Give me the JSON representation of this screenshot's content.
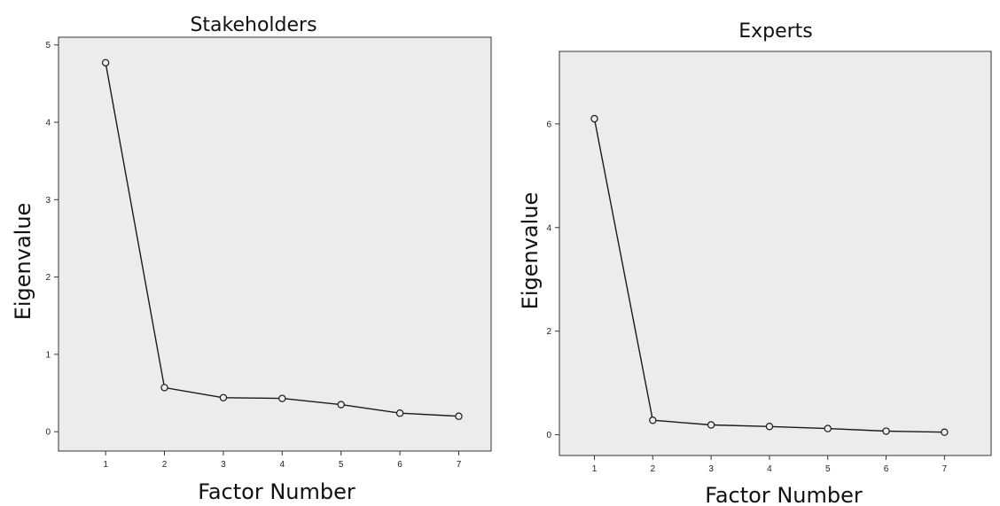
{
  "chart_data": [
    {
      "type": "line",
      "title": "Stakeholders",
      "xlabel": "Factor Number",
      "ylabel": "Eigenvalue",
      "x": [
        1,
        2,
        3,
        4,
        5,
        6,
        7
      ],
      "series": [
        {
          "values": [
            4.77,
            0.57,
            0.44,
            0.43,
            0.35,
            0.24,
            0.2
          ]
        }
      ],
      "xticks": [
        "1",
        "2",
        "3",
        "4",
        "5",
        "6",
        "7"
      ],
      "yticks": [
        "0",
        "1",
        "2",
        "3",
        "4",
        "5"
      ],
      "xlim": [
        0.2,
        7.55
      ],
      "ylim": [
        -0.25,
        5.1
      ],
      "grid": false,
      "colors": {
        "line": "#1a1a1a",
        "plot_background": "#ececec"
      }
    },
    {
      "type": "line",
      "title": "Experts",
      "xlabel": "Factor Number",
      "ylabel": "Eigenvalue",
      "x": [
        1,
        2,
        3,
        4,
        5,
        6,
        7
      ],
      "series": [
        {
          "values": [
            6.1,
            0.28,
            0.19,
            0.16,
            0.12,
            0.07,
            0.05
          ]
        }
      ],
      "xticks": [
        "1",
        "2",
        "3",
        "4",
        "5",
        "6",
        "7"
      ],
      "yticks": [
        "0",
        "2",
        "4",
        "6"
      ],
      "xlim": [
        0.4,
        7.8
      ],
      "ylim": [
        -0.4,
        7.4
      ],
      "grid": false,
      "colors": {
        "line": "#1a1a1a",
        "plot_background": "#ececec"
      }
    }
  ]
}
